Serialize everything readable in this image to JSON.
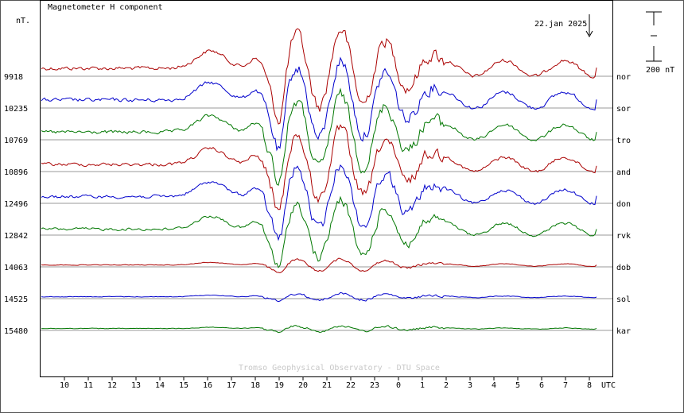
{
  "chart_data": {
    "type": "line",
    "title": "Magnetometer H component",
    "ylabel": "nT.",
    "date_label": "22.jan 2025",
    "scale_bar_label": "200 nT",
    "x_unit_label": "UTC",
    "watermark": "Tromso Geophysical Observatory - DTU Space",
    "x_ticks": [
      "10",
      "11",
      "12",
      "13",
      "14",
      "15",
      "16",
      "17",
      "18",
      "19",
      "20",
      "21",
      "22",
      "23",
      "0",
      "1",
      "2",
      "3",
      "4",
      "5",
      "6",
      "7",
      "8"
    ],
    "series": [
      {
        "name": "nor",
        "baseline": "9918",
        "color": "#aa0000"
      },
      {
        "name": "sor",
        "baseline": "10235",
        "color": "#0000cc"
      },
      {
        "name": "tro",
        "baseline": "10769",
        "color": "#007700"
      },
      {
        "name": "and",
        "baseline": "10896",
        "color": "#aa0000"
      },
      {
        "name": "don",
        "baseline": "12496",
        "color": "#0000cc"
      },
      {
        "name": "rvk",
        "baseline": "12842",
        "color": "#007700"
      },
      {
        "name": "dob",
        "baseline": "14063",
        "color": "#aa0000"
      },
      {
        "name": "sol",
        "baseline": "14525",
        "color": "#0000cc"
      },
      {
        "name": "kar",
        "baseline": "15480",
        "color": "#007700"
      }
    ]
  }
}
